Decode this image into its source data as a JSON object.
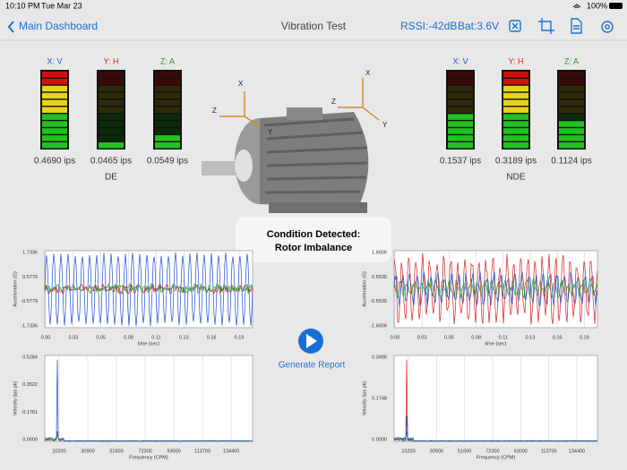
{
  "status_bar": {
    "time": "10:10 PM",
    "date": "Tue Mar 23",
    "battery": "100%"
  },
  "nav_bar": {
    "back": "Main Dashboard",
    "title": "Vibration Test",
    "rssi": "RSSI:-42dB",
    "battery": "Bat:3.6V"
  },
  "sensors": [
    {
      "name": "DE",
      "axes": [
        {
          "label": "X: V",
          "reading": "0.4690 ips"
        },
        {
          "label": "Y: H",
          "reading": "0.0465 ips"
        },
        {
          "label": "Z: A",
          "reading": "0.0549 ips"
        }
      ]
    },
    {
      "name": "NDE",
      "axes": [
        {
          "label": "X: V",
          "reading": "0.1537 ips"
        },
        {
          "label": "Y: H",
          "reading": "0.3189 ips"
        },
        {
          "label": "Z: A",
          "reading": "0.1124 ips"
        }
      ]
    }
  ],
  "motor_axes": [
    "X",
    "Z",
    "Y"
  ],
  "alert": {
    "title": "Condition Detected:",
    "message": "Rotor Imbalance"
  },
  "action": {
    "label": "Generate Report"
  },
  "charts": [
    {
      "y_label": "Acceleration (G)",
      "x_label": "time (sec)",
      "yticks": [
        "1.7336",
        "0.5779",
        "-0.5779",
        "-1.7336"
      ],
      "xticks": [
        "0.00",
        "0.03",
        "0.05",
        "0.08",
        "0.11",
        "0.13",
        "0.16",
        "0.19"
      ]
    },
    {
      "y_label": "Acceleration (G)",
      "x_label": "time (sec)",
      "yticks": [
        "1.6606",
        "0.5535",
        "-0.5535",
        "-1.6606"
      ],
      "xticks": [
        "0.00",
        "0.03",
        "0.05",
        "0.08",
        "0.11",
        "0.13",
        "0.16",
        "0.19"
      ]
    },
    {
      "y_label": "Velocity (ips pk)",
      "x_label": "Frequency (CPM)",
      "yticks": [
        "0.5284",
        "0.3522",
        "0.1761",
        "0.0000"
      ],
      "xticks": [
        "10200",
        "30900",
        "51600",
        "72300",
        "93000",
        "113700",
        "134400"
      ]
    },
    {
      "y_label": "Velocity (ips pk)",
      "x_label": "Frequency (CPM)",
      "yticks": [
        "0.3496",
        "0.1748",
        "0.0000"
      ],
      "xticks": [
        "10200",
        "30900",
        "51600",
        "72300",
        "93000",
        "113700",
        "134400"
      ]
    }
  ]
}
